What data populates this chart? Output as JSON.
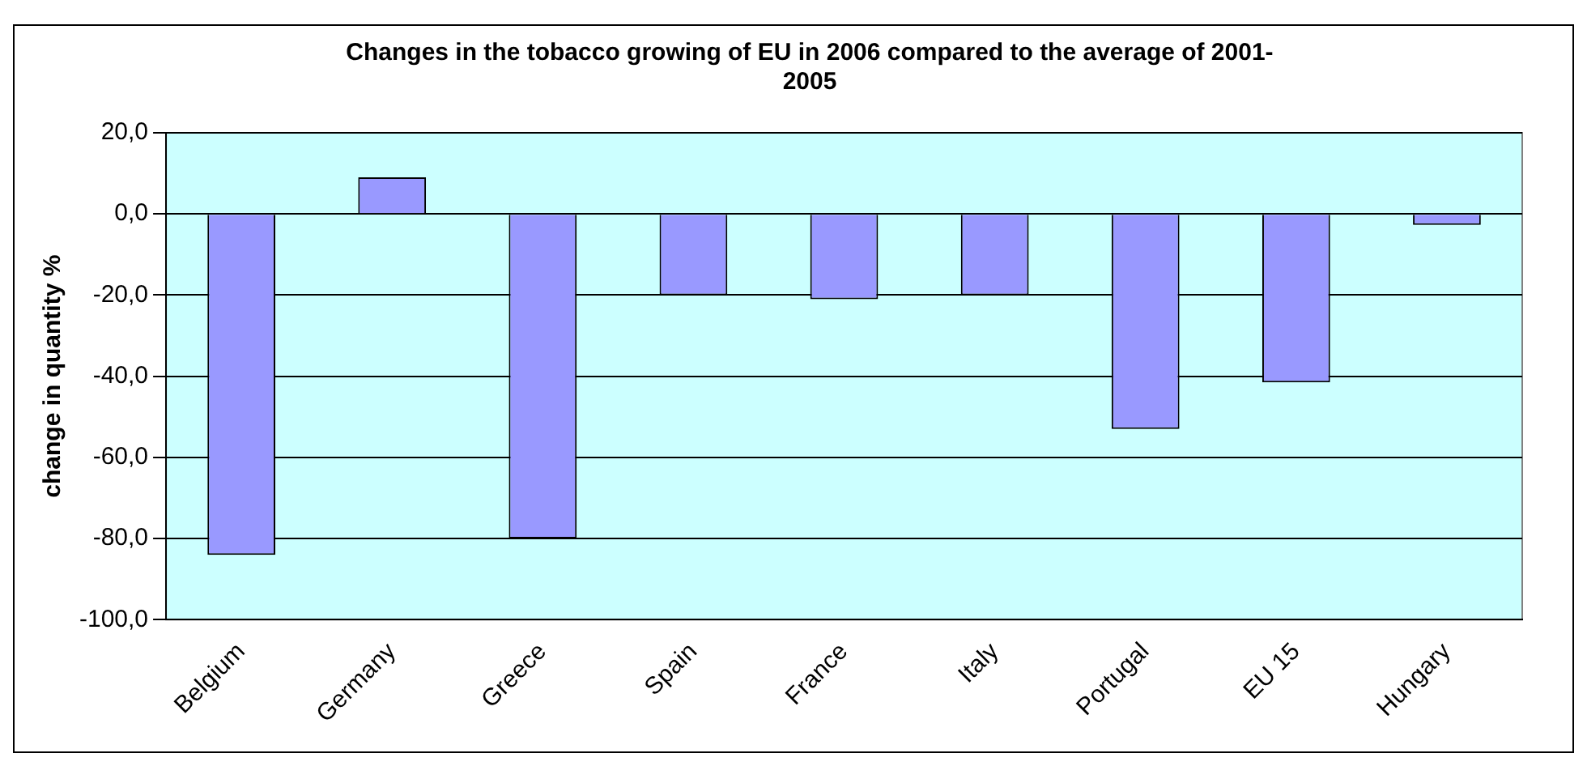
{
  "chart_data": {
    "type": "bar",
    "title": "Changes in the tobacco growing of EU in 2006 compared to the average of 2001-2005",
    "ylabel": "change in quantity %",
    "categories": [
      "Belgium",
      "Germany",
      "Greece",
      "Spain",
      "France",
      "Italy",
      "Portugal",
      "EU 15",
      "Hungary"
    ],
    "values": [
      -84,
      9,
      -80,
      -20,
      -21,
      -20,
      -53,
      -41.5,
      -2.7
    ],
    "color": "#9999ff",
    "ylim": [
      -100,
      20
    ],
    "yticks": [
      {
        "value": 20,
        "label": "20,0"
      },
      {
        "value": 0,
        "label": "0,0"
      },
      {
        "value": -20,
        "label": "-20,0"
      },
      {
        "value": -40,
        "label": "-40,0"
      },
      {
        "value": -60,
        "label": "-60,0"
      },
      {
        "value": -80,
        "label": "-80,0"
      },
      {
        "value": -100,
        "label": "-100,0"
      }
    ],
    "grid": "y"
  }
}
